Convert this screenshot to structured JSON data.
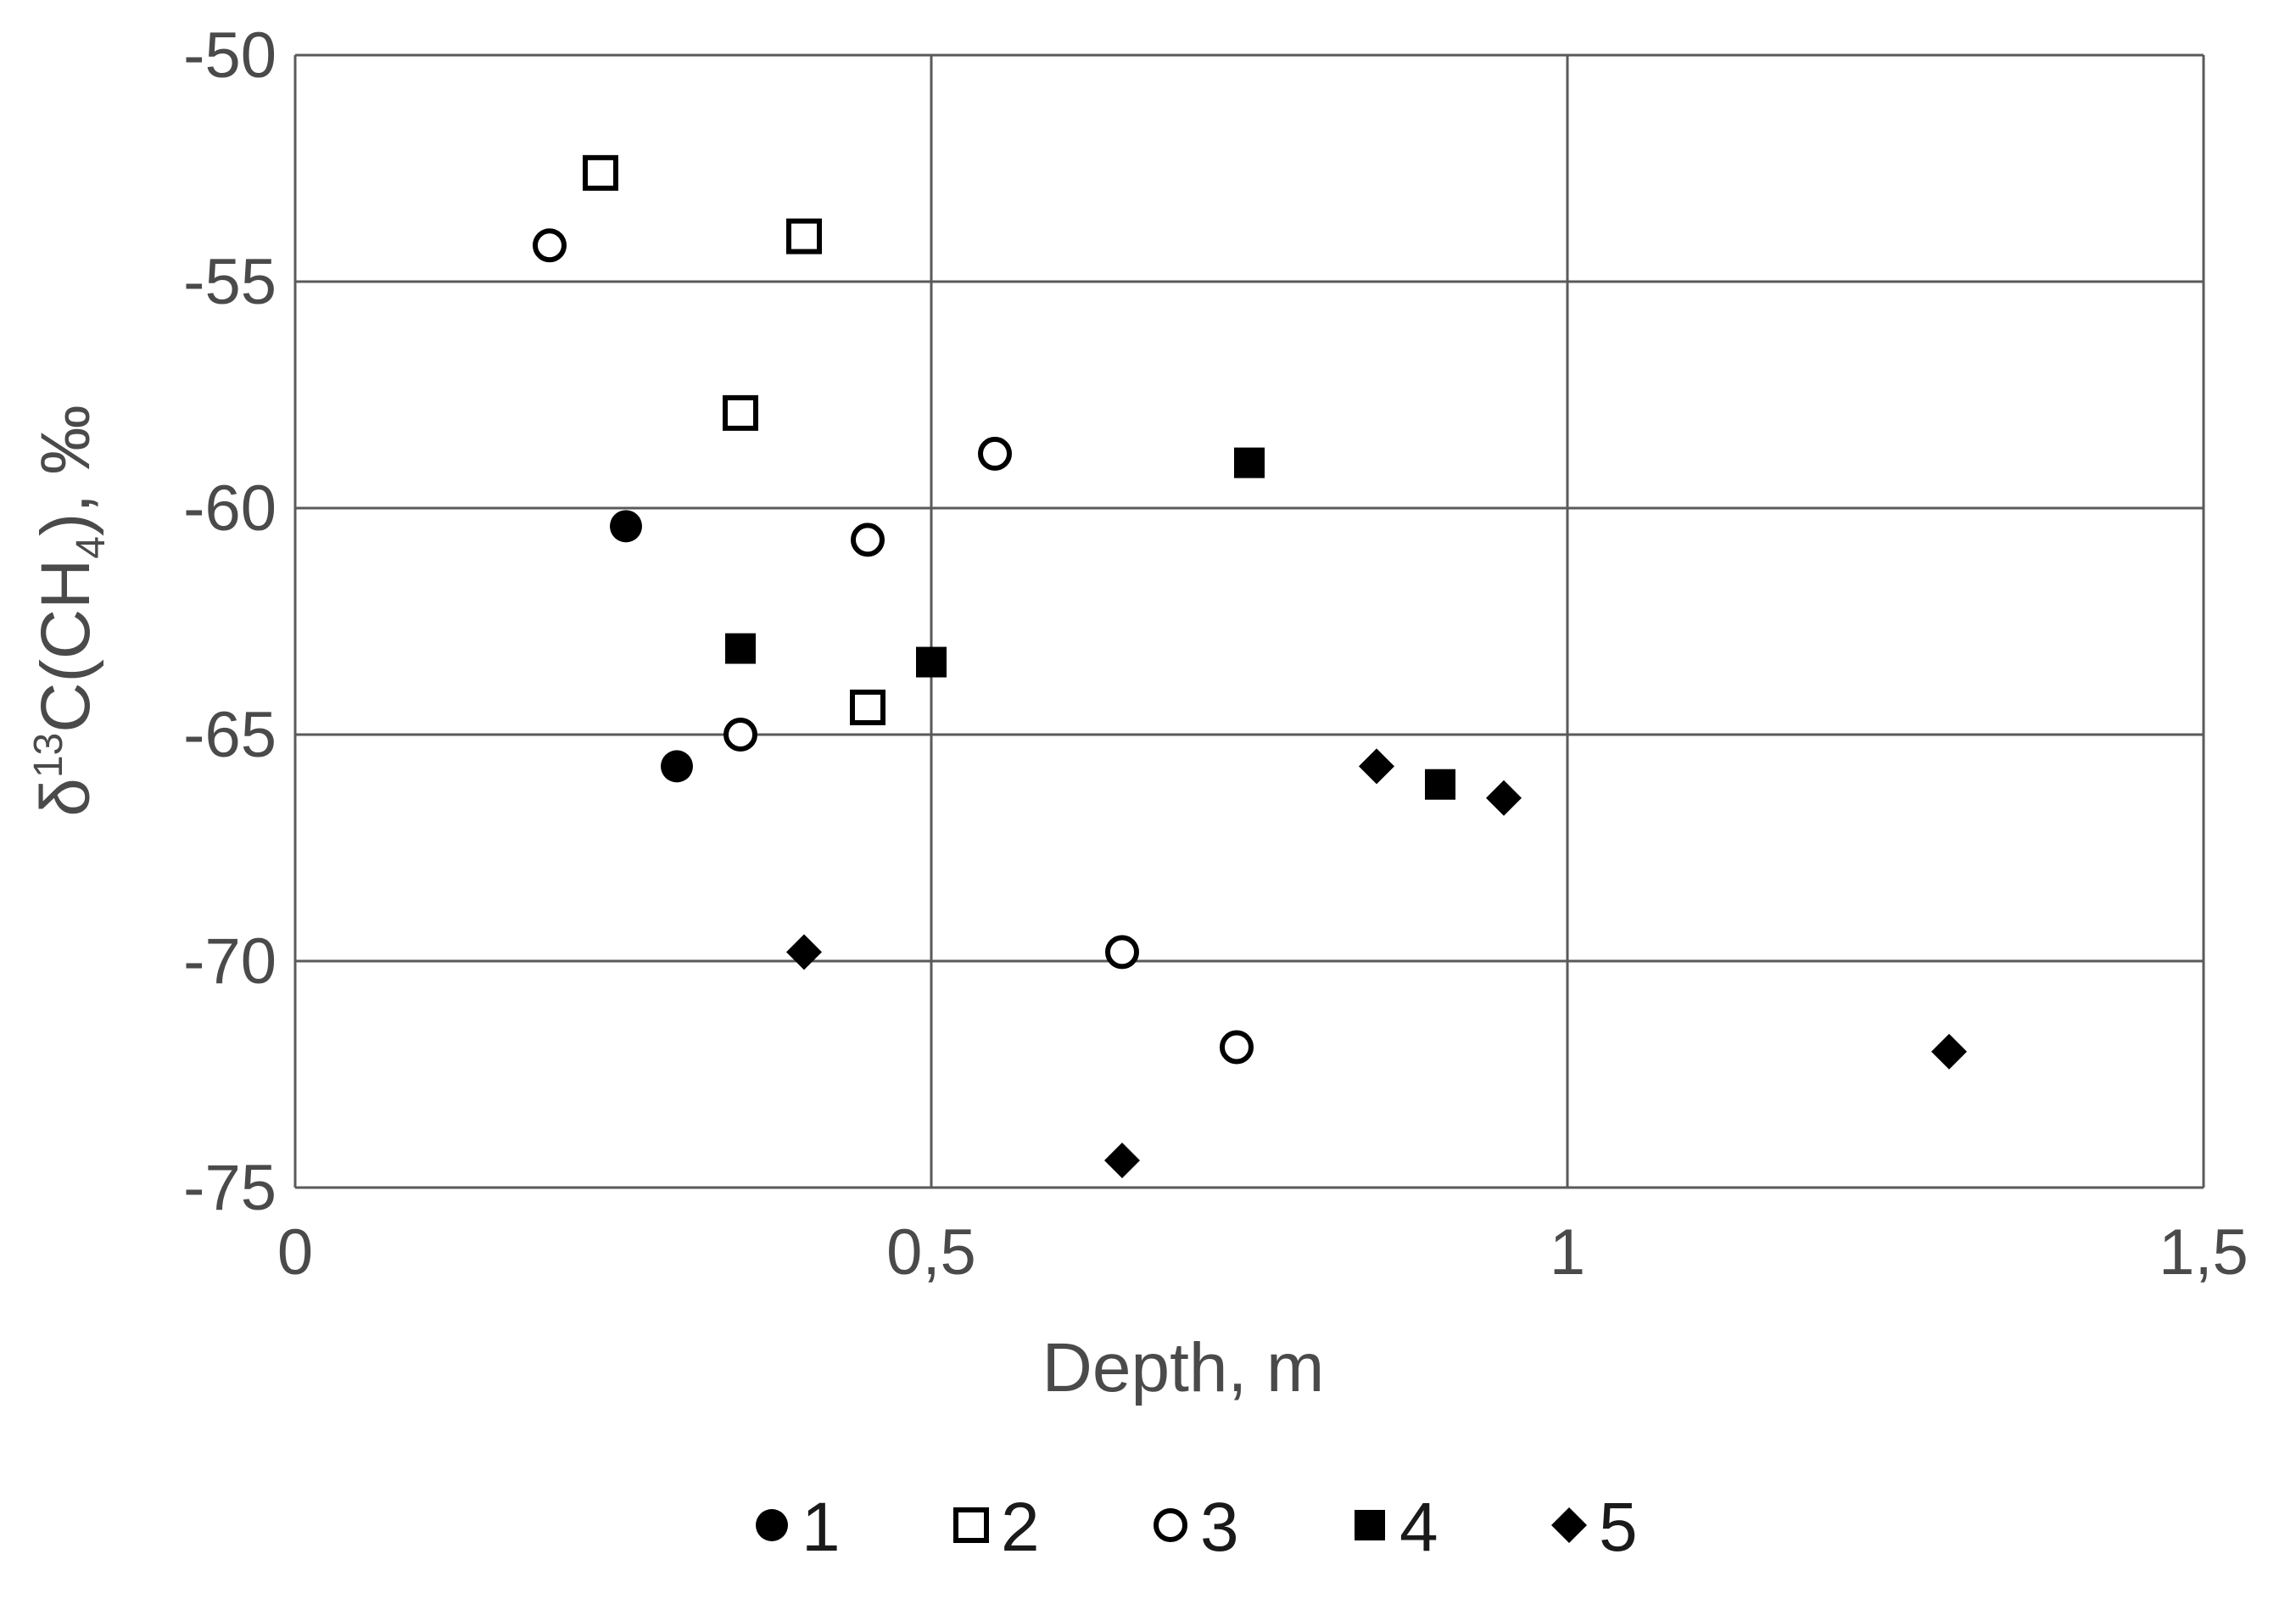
{
  "chart_data": {
    "type": "scatter",
    "xlabel": "Depth, m",
    "ylabel": {
      "prefix": "δ",
      "superscript": "13",
      "main": "C(CH",
      "subscript": "4",
      "suffix": "), ‰"
    },
    "xlim": [
      0,
      1.5
    ],
    "ylim": [
      -75,
      -50
    ],
    "x_ticks": [
      {
        "value": 0,
        "label": "0"
      },
      {
        "value": 0.5,
        "label": "0,5"
      },
      {
        "value": 1,
        "label": "1"
      },
      {
        "value": 1.5,
        "label": "1,5"
      }
    ],
    "y_ticks": [
      {
        "value": -50,
        "label": "-50"
      },
      {
        "value": -55,
        "label": "-55"
      },
      {
        "value": -60,
        "label": "-60"
      },
      {
        "value": -65,
        "label": "-65"
      },
      {
        "value": -70,
        "label": "-70"
      },
      {
        "value": -75,
        "label": "-75"
      }
    ],
    "grid": true,
    "legend_position": "bottom",
    "series": [
      {
        "name": "1",
        "marker": "filled-circle",
        "points": [
          {
            "x": 0.26,
            "y": -60.4
          },
          {
            "x": 0.3,
            "y": -65.7
          }
        ]
      },
      {
        "name": "2",
        "marker": "open-square",
        "points": [
          {
            "x": 0.24,
            "y": -52.6
          },
          {
            "x": 0.4,
            "y": -54.0
          },
          {
            "x": 0.35,
            "y": -57.9
          },
          {
            "x": 0.45,
            "y": -64.4
          }
        ]
      },
      {
        "name": "3",
        "marker": "open-circle",
        "points": [
          {
            "x": 0.2,
            "y": -54.2
          },
          {
            "x": 0.55,
            "y": -58.8
          },
          {
            "x": 0.45,
            "y": -60.7
          },
          {
            "x": 0.35,
            "y": -65.0
          },
          {
            "x": 0.65,
            "y": -69.8
          },
          {
            "x": 0.74,
            "y": -71.9
          }
        ]
      },
      {
        "name": "4",
        "marker": "filled-square",
        "points": [
          {
            "x": 0.75,
            "y": -59.0
          },
          {
            "x": 0.35,
            "y": -63.1
          },
          {
            "x": 0.5,
            "y": -63.4
          },
          {
            "x": 0.9,
            "y": -66.1
          }
        ]
      },
      {
        "name": "5",
        "marker": "filled-diamond",
        "points": [
          {
            "x": 0.85,
            "y": -65.7
          },
          {
            "x": 0.95,
            "y": -66.4
          },
          {
            "x": 0.4,
            "y": -69.8
          },
          {
            "x": 1.3,
            "y": -72.0
          },
          {
            "x": 0.65,
            "y": -74.4
          }
        ]
      }
    ]
  }
}
